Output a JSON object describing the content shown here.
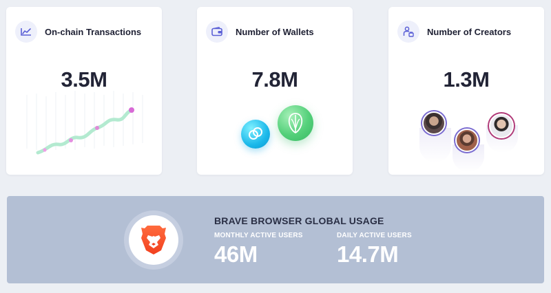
{
  "cards": [
    {
      "title": "On-chain Transactions",
      "value": "3.5M",
      "icon": "trend-line-icon"
    },
    {
      "title": "Number of Wallets",
      "value": "7.8M",
      "icon": "wallet-icon"
    },
    {
      "title": "Number of Creators",
      "value": "1.3M",
      "icon": "creators-icon"
    }
  ],
  "wallet_logos": [
    "gemini-wallet-logo",
    "uphold-wallet-logo"
  ],
  "creator_avatars": [
    "creator-avatar-1",
    "creator-avatar-2",
    "creator-avatar-3"
  ],
  "banner": {
    "title": "BRAVE BROWSER GLOBAL USAGE",
    "logo": "brave-lion-logo",
    "stats": [
      {
        "label": "MONTHLY ACTIVE USERS",
        "value": "46M"
      },
      {
        "label": "DAILY ACTIVE USERS",
        "value": "14.7M"
      }
    ]
  },
  "colors": {
    "accent": "#5a5fd6",
    "chart_line": "#a7e6c4",
    "chart_dot": "#d86ad6",
    "banner_bg": "#b3bfd4",
    "brave_orange": "#fb542b"
  }
}
